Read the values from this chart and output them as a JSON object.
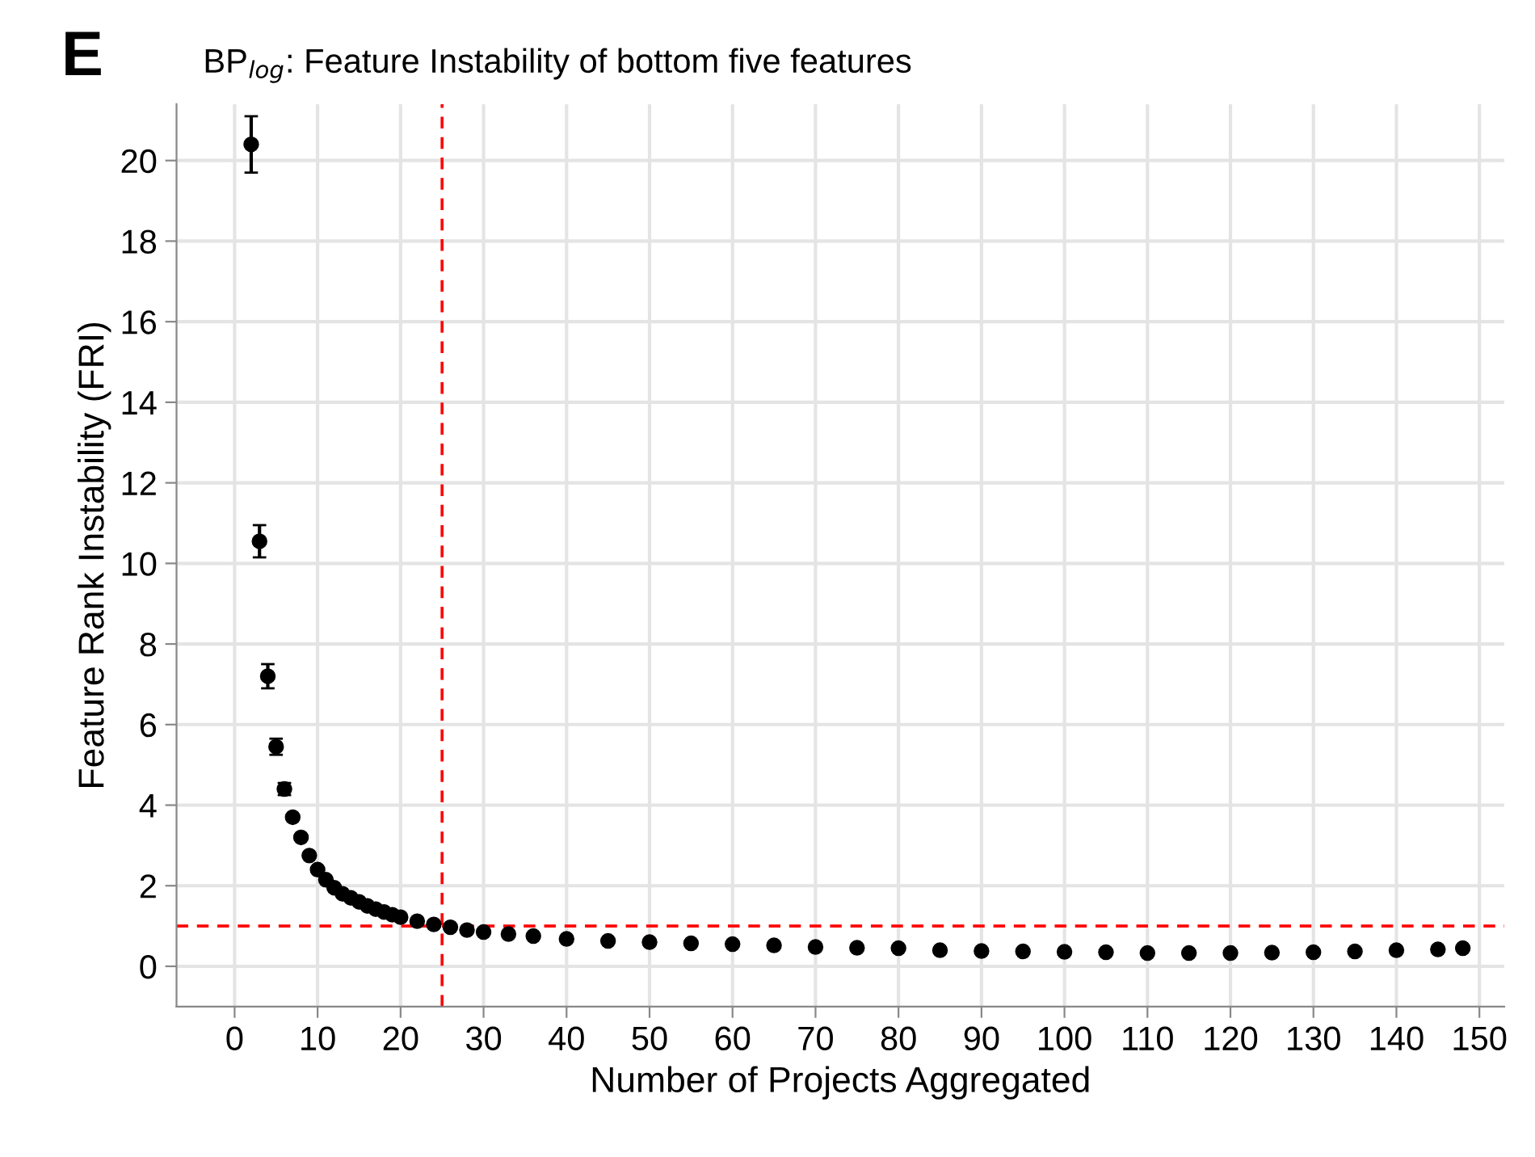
{
  "chart_data": {
    "type": "scatter",
    "title": "BP$_{log}$: Feature Instability of bottom five features",
    "xlabel": "Number of Projects Aggregated",
    "ylabel": "Feature Rank Instability (FRI)",
    "annotations": [
      "E"
    ],
    "x": [
      2,
      3,
      4,
      5,
      6,
      7,
      8,
      9,
      10,
      11,
      12,
      13,
      14,
      15,
      16,
      17,
      18,
      19,
      20,
      22,
      24,
      26,
      28,
      30,
      33,
      36,
      40,
      45,
      50,
      55,
      60,
      65,
      70,
      75,
      80,
      85,
      90,
      95,
      100,
      105,
      110,
      115,
      120,
      125,
      130,
      135,
      140,
      145,
      148
    ],
    "series": [
      {
        "color": "#000000",
        "values": [
          20.4,
          10.55,
          7.2,
          5.45,
          4.4,
          3.7,
          3.2,
          2.75,
          2.4,
          2.15,
          1.95,
          1.8,
          1.7,
          1.6,
          1.5,
          1.42,
          1.35,
          1.28,
          1.22,
          1.12,
          1.04,
          0.97,
          0.9,
          0.85,
          0.8,
          0.75,
          0.68,
          0.63,
          0.6,
          0.57,
          0.55,
          0.52,
          0.48,
          0.46,
          0.45,
          0.4,
          0.38,
          0.37,
          0.36,
          0.35,
          0.33,
          0.33,
          0.33,
          0.34,
          0.35,
          0.37,
          0.4,
          0.42,
          0.45
        ],
        "errors": [
          0.7,
          0.4,
          0.3,
          0.2,
          0.15,
          null,
          null,
          null,
          null,
          null,
          null,
          null,
          null,
          null,
          null,
          null,
          null,
          null,
          null,
          null,
          null,
          null,
          null,
          null,
          null,
          null,
          null,
          null,
          null,
          null,
          null,
          null,
          null,
          null,
          null,
          null,
          null,
          null,
          null,
          null,
          null,
          null,
          null,
          null,
          null,
          null,
          null,
          null,
          null
        ]
      }
    ],
    "marker": "circle",
    "xlim": [
      -7,
      153
    ],
    "ylim": [
      -1,
      21.4
    ],
    "xticks": [
      0,
      10,
      20,
      30,
      40,
      50,
      60,
      70,
      80,
      90,
      100,
      110,
      120,
      130,
      140,
      150
    ],
    "yticks": [
      0,
      2,
      4,
      6,
      8,
      10,
      12,
      14,
      16,
      18,
      20
    ],
    "grid": true,
    "ref_lines": [
      {
        "axis": "x",
        "value": 25,
        "color": "#ff0000",
        "line_style": "dashed"
      },
      {
        "axis": "y",
        "value": 1,
        "color": "#ff0000",
        "line_style": "dashed"
      }
    ]
  }
}
